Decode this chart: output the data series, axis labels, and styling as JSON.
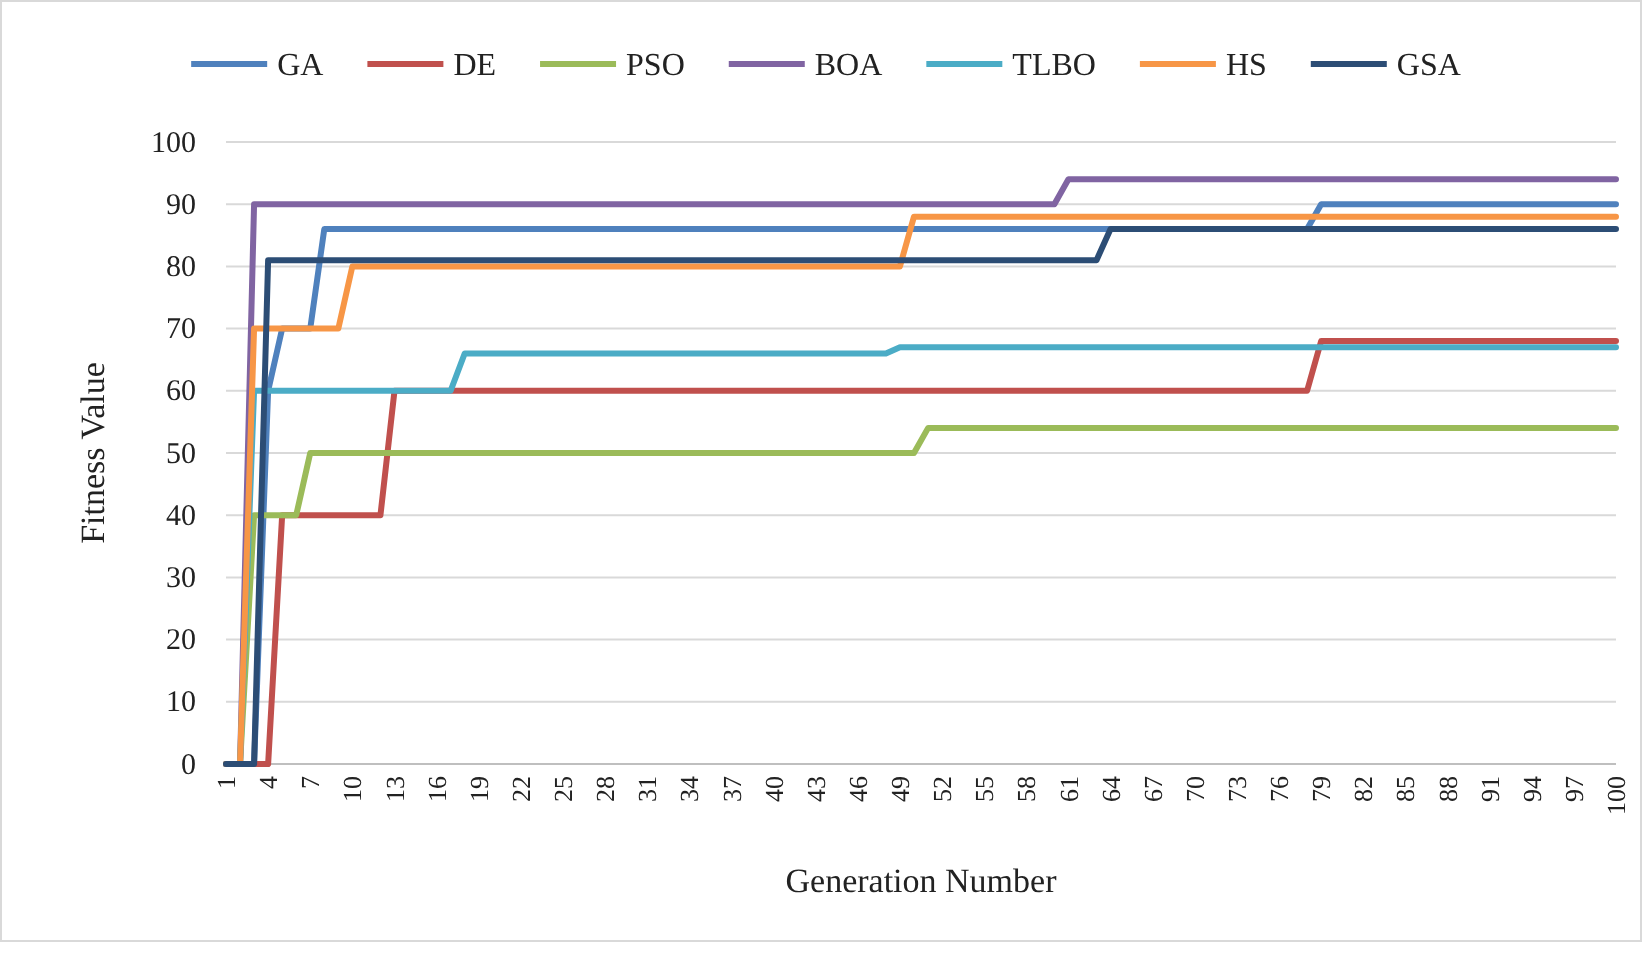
{
  "chart_data": {
    "type": "line",
    "xlabel": "Generation Number",
    "ylabel": "Fitness Value",
    "xlim": [
      1,
      100
    ],
    "xticks": [
      1,
      4,
      7,
      10,
      13,
      16,
      19,
      22,
      25,
      28,
      31,
      34,
      37,
      40,
      43,
      46,
      49,
      52,
      55,
      58,
      61,
      64,
      67,
      70,
      73,
      76,
      79,
      82,
      85,
      88,
      91,
      94,
      97,
      100
    ],
    "ylim": [
      0,
      100
    ],
    "yticks": [
      0,
      10,
      20,
      30,
      40,
      50,
      60,
      70,
      80,
      90,
      100
    ],
    "grid": "y",
    "legend": "top",
    "marker": "none",
    "line_style": "solid",
    "series": [
      {
        "name": "GA",
        "color": "#4f81bd",
        "x": [
          1,
          3,
          4,
          5,
          7,
          8,
          78,
          79,
          100
        ],
        "values": [
          0,
          0,
          60,
          70,
          70,
          86,
          86,
          90,
          90
        ]
      },
      {
        "name": "DE",
        "color": "#c0504d",
        "x": [
          1,
          4,
          5,
          12,
          13,
          78,
          79,
          100
        ],
        "values": [
          0,
          0,
          40,
          40,
          60,
          60,
          68,
          68
        ]
      },
      {
        "name": "PSO",
        "color": "#9bbb59",
        "x": [
          1,
          2,
          3,
          6,
          7,
          50,
          51,
          100
        ],
        "values": [
          0,
          0,
          40,
          40,
          50,
          50,
          54,
          54
        ]
      },
      {
        "name": "BOA",
        "color": "#8064a2",
        "x": [
          1,
          2,
          3,
          60,
          61,
          100
        ],
        "values": [
          0,
          0,
          90,
          90,
          94,
          94
        ]
      },
      {
        "name": "TLBO",
        "color": "#4bacc6",
        "x": [
          1,
          2,
          3,
          17,
          18,
          48,
          49,
          100
        ],
        "values": [
          0,
          0,
          60,
          60,
          66,
          66,
          67,
          67
        ]
      },
      {
        "name": "HS",
        "color": "#f79646",
        "x": [
          1,
          2,
          3,
          9,
          10,
          49,
          50,
          100
        ],
        "values": [
          0,
          0,
          70,
          70,
          80,
          80,
          88,
          88
        ]
      },
      {
        "name": "GSA",
        "color": "#2c4d75",
        "x": [
          1,
          3,
          4,
          63,
          64,
          100
        ],
        "values": [
          0,
          0,
          81,
          81,
          86,
          86
        ]
      }
    ]
  }
}
